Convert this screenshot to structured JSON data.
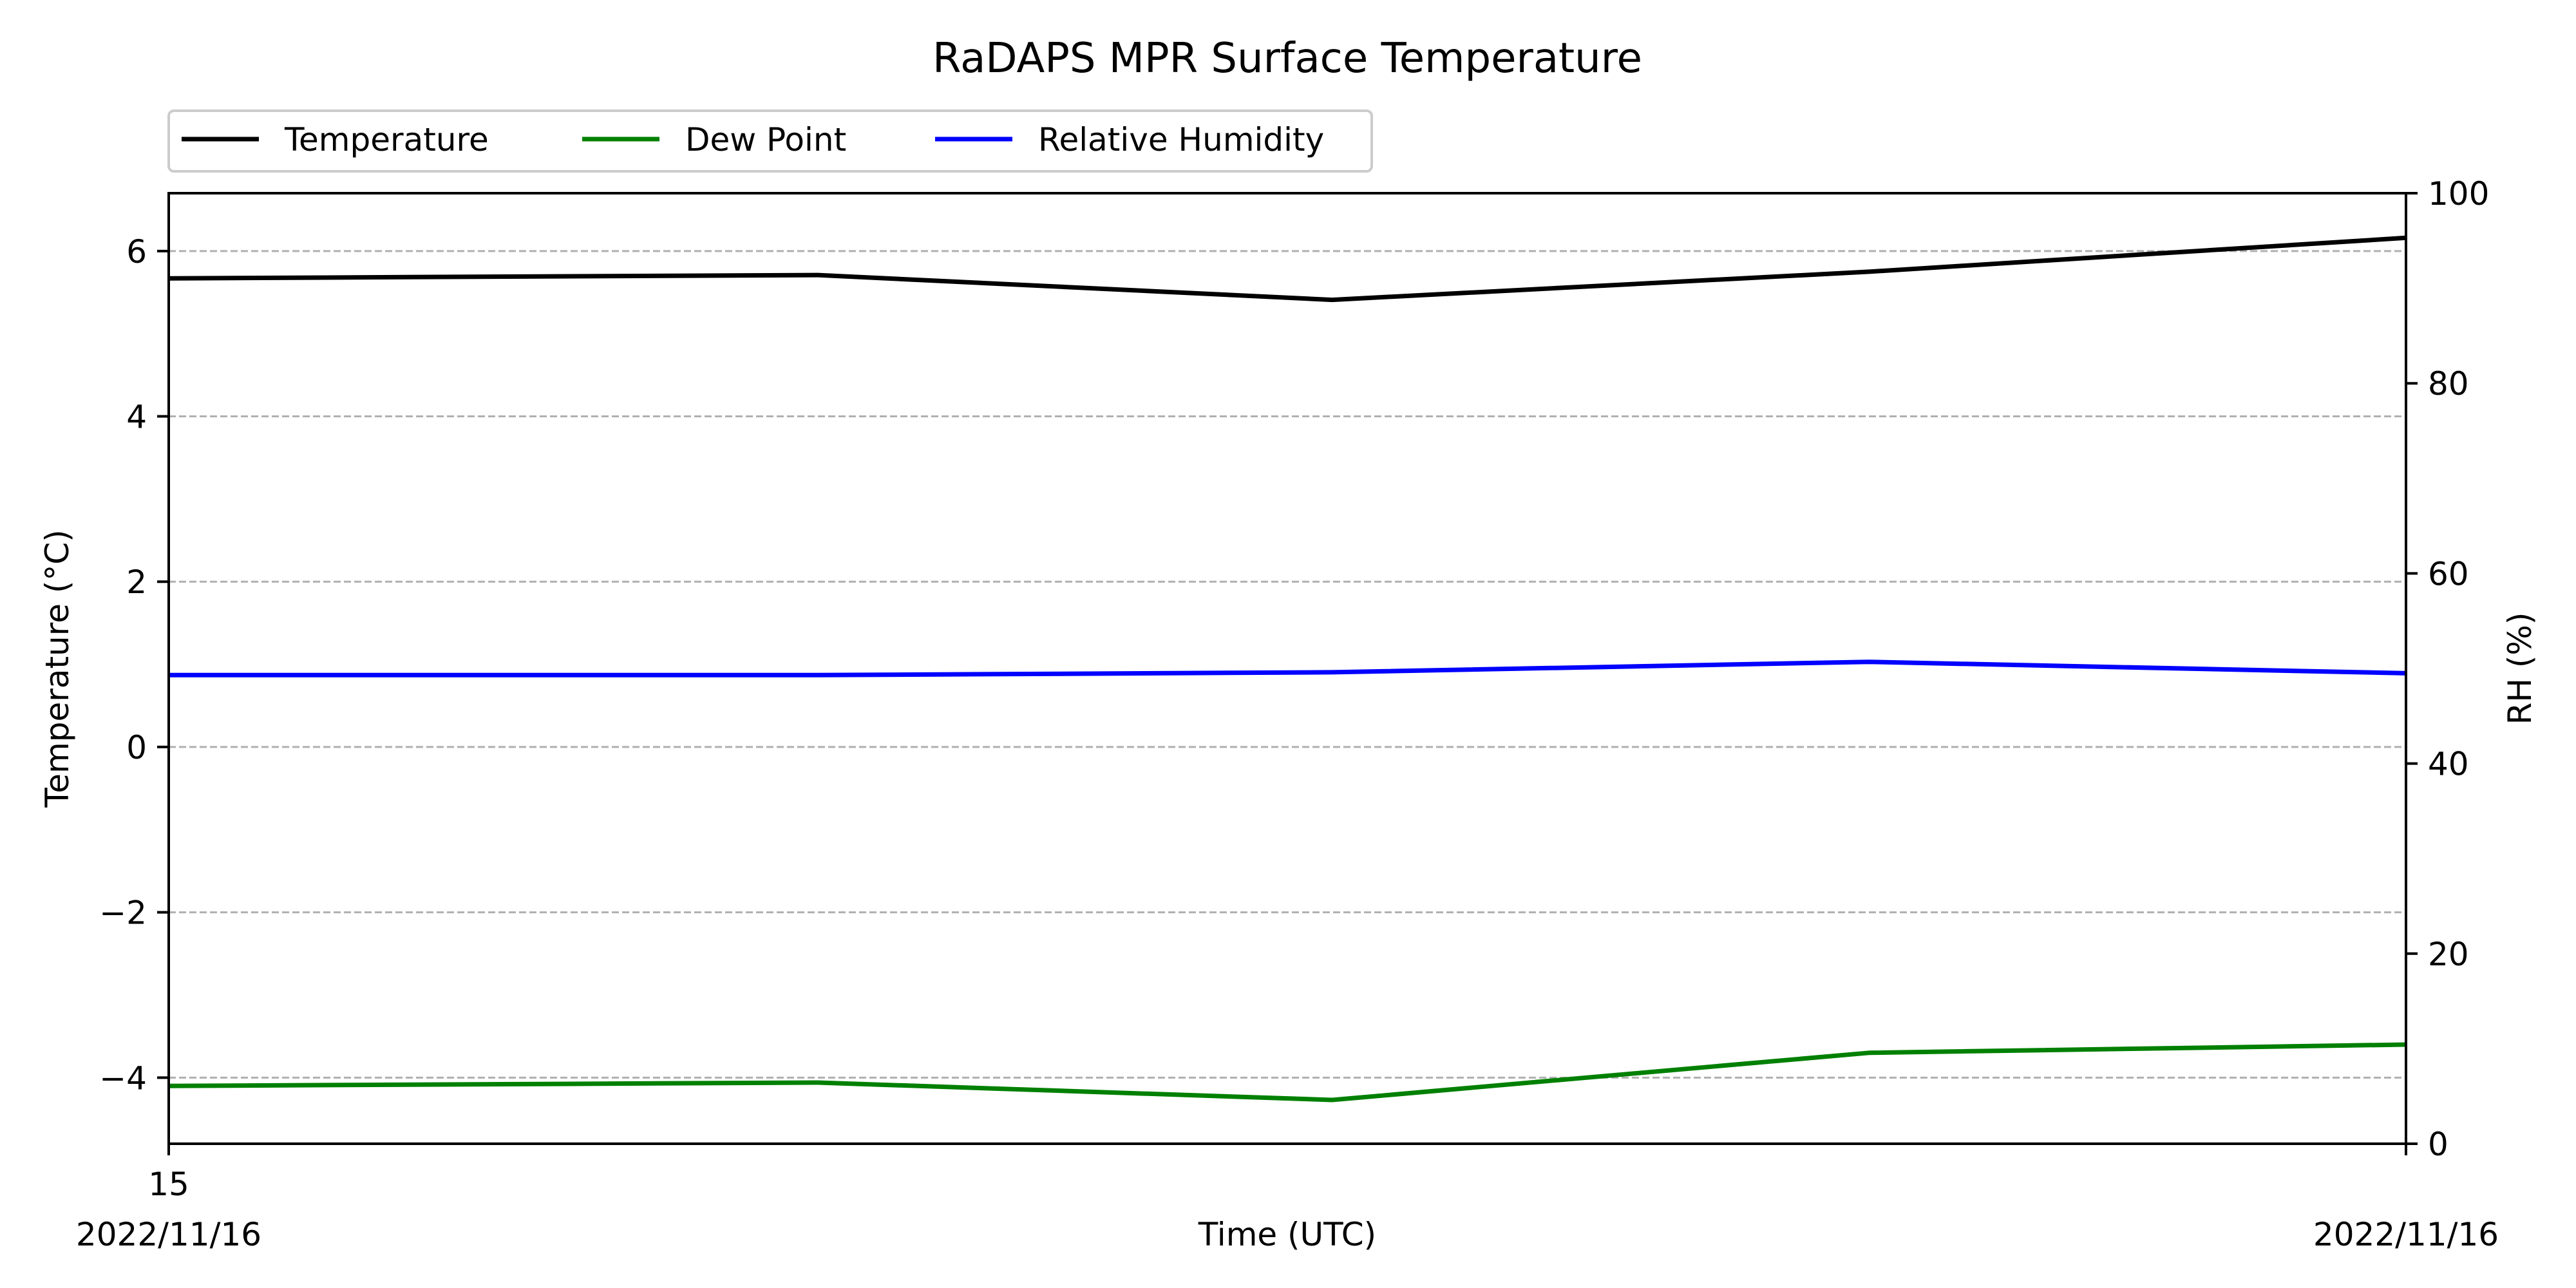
{
  "chart_data": {
    "type": "line",
    "title": "RaDAPS MPR Surface Temperature",
    "xlabel": "Time (UTC)",
    "ylabel_left": "Temperature (°C)",
    "ylabel_right": "RH (%)",
    "ylim_left": [
      -4.8,
      6.7
    ],
    "ylim_right": [
      0,
      100
    ],
    "yticks_left": [
      -4,
      -2,
      0,
      2,
      4,
      6
    ],
    "yticks_right": [
      0,
      20,
      40,
      60,
      80,
      100
    ],
    "ytick_labels_left": [
      "−4",
      "−2",
      "0",
      "2",
      "4",
      "6"
    ],
    "ytick_labels_right": [
      "0",
      "20",
      "40",
      "60",
      "80",
      "100"
    ],
    "xlim": [
      0,
      1
    ],
    "x": [
      0,
      0.29,
      0.52,
      0.76,
      1.0
    ],
    "xtick_labels": [
      {
        "x": 0,
        "line1": "15",
        "line2": "2022/11/16"
      },
      {
        "x": 1,
        "line1": "",
        "line2": "2022/11/16"
      }
    ],
    "grid": "horizontal dashed",
    "legend": "top-left, outside plot",
    "series": [
      {
        "name": "Temperature",
        "axis": "left",
        "color": "#000000",
        "values": [
          5.67,
          5.71,
          5.41,
          5.75,
          6.16
        ]
      },
      {
        "name": "Dew Point",
        "axis": "left",
        "color": "#008000",
        "values": [
          -4.1,
          -4.06,
          -4.27,
          -3.7,
          -3.6
        ]
      },
      {
        "name": "Relative Humidity",
        "axis": "right",
        "color": "#0000ff",
        "values": [
          49.3,
          49.3,
          49.6,
          50.7,
          49.5
        ]
      }
    ]
  }
}
